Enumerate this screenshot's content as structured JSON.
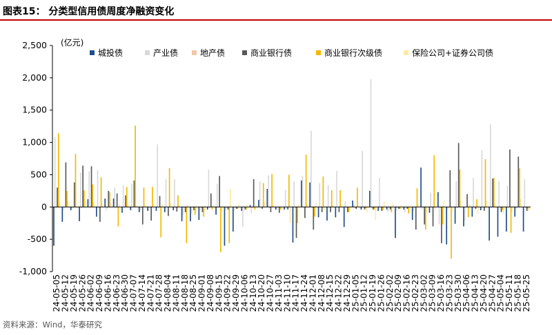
{
  "figure": {
    "title": "图表15：  分类型信用债周度净融资变化",
    "source": "资料来源：Wind，华泰研究"
  },
  "colors": {
    "rule": "#c00000",
    "series": [
      "#1f4e8c",
      "#d9d9d9",
      "#f4c6a8",
      "#595959",
      "#f5b800",
      "#fde9a6"
    ]
  },
  "chart_data": {
    "type": "bar",
    "unit_label": "(亿元)",
    "ylim": [
      -1000,
      2500
    ],
    "yticks": [
      -1000,
      -500,
      0,
      500,
      1000,
      1500,
      2000,
      2500
    ],
    "ytick_labels": [
      "-1,000",
      "-500",
      "0",
      "500",
      "1,000",
      "1,500",
      "2,000",
      "2,500"
    ],
    "grid": false,
    "legend_position": "top",
    "categories": [
      "24-05-05",
      "24-05-12",
      "24-05-19",
      "24-05-26",
      "24-06-02",
      "24-06-09",
      "24-06-16",
      "24-06-23",
      "24-06-30",
      "24-07-07",
      "24-07-14",
      "24-07-21",
      "24-07-28",
      "24-08-04",
      "24-08-11",
      "24-08-18",
      "24-08-25",
      "24-09-01",
      "24-09-08",
      "24-09-15",
      "24-09-22",
      "24-09-29",
      "24-10-06",
      "24-10-13",
      "24-10-20",
      "24-10-27",
      "24-11-03",
      "24-11-10",
      "24-11-17",
      "24-11-24",
      "24-12-01",
      "24-12-08",
      "24-12-15",
      "24-12-22",
      "24-12-29",
      "25-01-05",
      "25-01-12",
      "25-01-19",
      "25-01-26",
      "25-02-02",
      "25-02-09",
      "25-02-16",
      "25-02-23",
      "25-03-02",
      "25-03-09",
      "25-03-16",
      "25-03-23",
      "25-03-30",
      "25-04-06",
      "25-04-13",
      "25-04-20",
      "25-04-27",
      "25-05-04",
      "25-05-11",
      "25-05-18",
      "25-05-25"
    ],
    "xtick_labels": [
      "24-05-05",
      "24-05-12",
      "24-05-19",
      "24-05-26",
      "24-06-02",
      "24-06-09",
      "24-06-16",
      "24-06-23",
      "24-06-30",
      "24-07-07",
      "24-07-14",
      "24-07-21",
      "24-07-28",
      "24-08-04",
      "24-08-11",
      "24-08-18",
      "24-08-25",
      "24-09-01",
      "24-09-08",
      "24-09-15",
      "24-09-22",
      "24-09-29",
      "24-10-06",
      "24-10-13",
      "24-10-20",
      "24-10-27",
      "24-11-03",
      "24-11-10",
      "24-11-17",
      "24-11-24",
      "24-12-01",
      "24-12-08",
      "24-12-15",
      "24-12-22",
      "24-12-29",
      "25-01-05",
      "25-01-12",
      "25-01-19",
      "25-01-26",
      "25-02-02",
      "25-02-09",
      "25-02-16",
      "25-02-23",
      "25-03-02",
      "25-03-09",
      "25-03-16",
      "25-03-23",
      "25-03-30",
      "25-04-06",
      "25-04-13",
      "25-04-20",
      "25-04-27",
      "25-05-04",
      "25-05-11",
      "25-05-18",
      "25-05-25"
    ],
    "series": [
      {
        "name": "城投债",
        "values": [
          -600,
          -230,
          -50,
          -220,
          120,
          -150,
          130,
          130,
          -90,
          -50,
          -80,
          -60,
          -60,
          -80,
          -50,
          -220,
          -220,
          -200,
          -40,
          -120,
          -600,
          -380,
          -60,
          30,
          110,
          280,
          -40,
          -40,
          -550,
          410,
          380,
          -160,
          -210,
          -160,
          -310,
          100,
          -40,
          250,
          -60,
          -40,
          -480,
          -40,
          -200,
          610,
          -90,
          230,
          -580,
          -260,
          -300,
          -150,
          -50,
          -520,
          -460,
          -380,
          -150,
          -380
        ]
      },
      {
        "name": "产业债",
        "values": [
          1080,
          -50,
          -30,
          530,
          550,
          570,
          -50,
          300,
          340,
          360,
          -50,
          -50,
          970,
          430,
          430,
          -130,
          -100,
          -50,
          580,
          360,
          -50,
          -60,
          -300,
          -100,
          400,
          490,
          -40,
          260,
          400,
          480,
          1180,
          370,
          340,
          560,
          90,
          40,
          870,
          1980,
          450,
          -80,
          -60,
          -80,
          -60,
          -40,
          220,
          -270,
          -40,
          400,
          -220,
          450,
          880,
          1280,
          400,
          330,
          -40,
          430
        ]
      },
      {
        "name": "地产债",
        "values": [
          -20,
          -10,
          -15,
          -20,
          -10,
          -15,
          -20,
          -15,
          -10,
          -10,
          -15,
          -10,
          -15,
          -10,
          -15,
          -10,
          -10,
          -20,
          -15,
          -10,
          -15,
          -10,
          -10,
          -15,
          -10,
          -15,
          -10,
          -10,
          -15,
          -10,
          -15,
          -10,
          -15,
          -10,
          -10,
          -15,
          -10,
          -15,
          -10,
          -10,
          -15,
          -10,
          -15,
          -10,
          -10,
          -15,
          -10,
          -15,
          -10,
          -10,
          -15,
          -10,
          -15,
          -10,
          -10,
          -15
        ]
      },
      {
        "name": "商业银行债",
        "values": [
          300,
          690,
          380,
          640,
          630,
          -230,
          250,
          210,
          180,
          410,
          -270,
          -210,
          170,
          -140,
          -70,
          -80,
          -50,
          -80,
          210,
          480,
          -40,
          -30,
          -40,
          430,
          -30,
          -80,
          -90,
          -40,
          -480,
          -170,
          -350,
          -80,
          -80,
          -80,
          -80,
          -30,
          -40,
          -40,
          -60,
          -40,
          -30,
          -30,
          -350,
          -270,
          -300,
          -560,
          570,
          990,
          200,
          -30,
          -60,
          440,
          -80,
          890,
          780,
          -60
        ]
      },
      {
        "name": "商业银行次级债",
        "values": [
          1140,
          250,
          820,
          260,
          350,
          460,
          230,
          -300,
          310,
          1260,
          300,
          310,
          -470,
          600,
          180,
          -560,
          -120,
          -150,
          -40,
          -700,
          -560,
          -30,
          -40,
          -40,
          370,
          510,
          -40,
          500,
          -250,
          810,
          -150,
          470,
          260,
          260,
          -80,
          300,
          -20,
          -40,
          -50,
          -80,
          -30,
          -100,
          290,
          -350,
          800,
          -270,
          -800,
          580,
          -160,
          120,
          740,
          450,
          -50,
          -400,
          600,
          -30
        ]
      },
      {
        "name": "保险公司+证券公司债",
        "values": [
          70,
          90,
          -20,
          100,
          80,
          40,
          60,
          50,
          40,
          20,
          30,
          40,
          50,
          60,
          30,
          40,
          -50,
          -60,
          30,
          -80,
          280,
          50,
          40,
          30,
          80,
          30,
          -50,
          -250,
          50,
          40,
          60,
          -50,
          30,
          40,
          -60,
          20,
          -80,
          -200,
          80,
          50,
          30,
          -50,
          40,
          -80,
          -50,
          100,
          -60,
          100,
          50,
          -100,
          100,
          50,
          -100,
          -80,
          120,
          -60
        ]
      }
    ]
  }
}
